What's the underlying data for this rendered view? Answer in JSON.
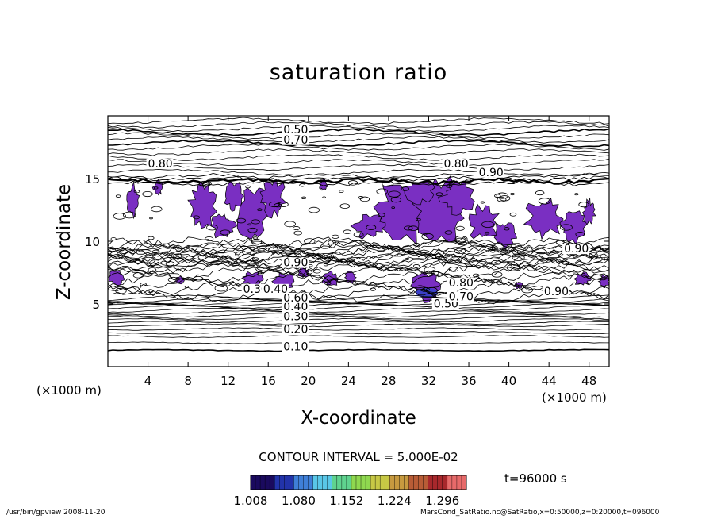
{
  "chart_data": {
    "type": "contour",
    "title": "saturation ratio",
    "xlabel": "X-coordinate",
    "ylabel": "Z-coordinate",
    "x_unit_label": "(×1000 m)",
    "xlim": [
      0,
      50
    ],
    "ylim": [
      0,
      20
    ],
    "x_ticks": [
      "4",
      "8",
      "12",
      "16",
      "20",
      "24",
      "28",
      "32",
      "36",
      "40",
      "44",
      "48"
    ],
    "y_ticks": [
      "5",
      "10",
      "15"
    ],
    "contour_labels": [
      {
        "text": "0.10",
        "x": 17.5,
        "z": 1.3
      },
      {
        "text": "0.20",
        "x": 17.5,
        "z": 2.7
      },
      {
        "text": "0.30",
        "x": 17.5,
        "z": 3.7
      },
      {
        "text": "0.40",
        "x": 17.5,
        "z": 4.5
      },
      {
        "text": "0.60",
        "x": 17.5,
        "z": 5.2
      },
      {
        "text": "0.30",
        "x": 13.5,
        "z": 5.9
      },
      {
        "text": "0.40",
        "x": 15.5,
        "z": 5.9
      },
      {
        "text": "0.90",
        "x": 17.5,
        "z": 8.0
      },
      {
        "text": "0.50",
        "x": 32.5,
        "z": 4.7
      },
      {
        "text": "0.70",
        "x": 34.0,
        "z": 5.3
      },
      {
        "text": "0.80",
        "x": 34.0,
        "z": 6.4
      },
      {
        "text": "0.90",
        "x": 43.5,
        "z": 5.7
      },
      {
        "text": "0.90",
        "x": 45.5,
        "z": 9.1
      },
      {
        "text": "0.80",
        "x": 4.0,
        "z": 15.9
      },
      {
        "text": "0.80",
        "x": 33.5,
        "z": 15.9
      },
      {
        "text": "0.90",
        "x": 37.0,
        "z": 15.2
      },
      {
        "text": "0.50",
        "x": 17.5,
        "z": 18.6
      },
      {
        "text": "0.70",
        "x": 17.5,
        "z": 17.8
      }
    ],
    "fill_regions_note": "shaded where saturation ratio >= 1.008",
    "colorbar": {
      "tick_labels": [
        "1.008",
        "1.080",
        "1.152",
        "1.224",
        "1.296"
      ],
      "range": [
        1.008,
        1.332
      ],
      "colors": [
        "#1a0a5e",
        "#2233aa",
        "#3f7fd8",
        "#59c7e8",
        "#5fd38f",
        "#8fd84f",
        "#c7c845",
        "#c79a3f",
        "#b85c36",
        "#a8282c",
        "#e76a6a"
      ]
    },
    "contour_interval": "CONTOUR INTERVAL = 5.000E-02",
    "time_label": "t=96000 s",
    "fill_color": "#7a2fc2"
  },
  "footer": {
    "left": "/usr/bin/gpview   2008-11-20",
    "right": "MarsCond_SatRatio.nc@SatRatio,x=0:50000,z=0:20000,t=096000"
  }
}
